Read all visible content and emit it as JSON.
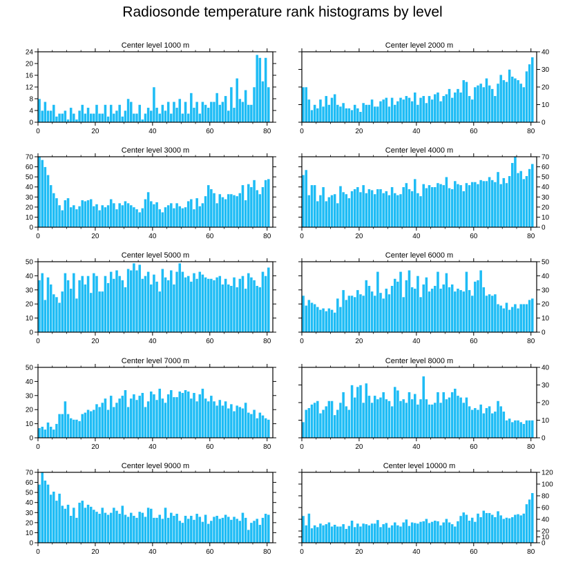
{
  "figure_title": "Radiosonde temperature rank histograms by level",
  "bar_color": "#1ebcf5",
  "bar_edge_color": "#ffffff",
  "axis_color": "#000000",
  "chart_data": [
    {
      "type": "bar",
      "title": "Center level 1000 m",
      "xlim": [
        0,
        82
      ],
      "ylim": [
        0,
        24
      ],
      "xticks": [
        0,
        20,
        40,
        60,
        80
      ],
      "yticks": [
        0,
        4,
        8,
        12,
        16,
        20,
        24
      ],
      "y_axis_side": "left",
      "values": [
        8,
        4,
        7,
        4,
        4,
        6,
        2,
        3,
        3,
        4,
        1,
        5,
        3,
        1,
        4,
        6,
        3,
        5,
        3,
        3,
        6,
        3,
        3,
        6,
        2,
        6,
        3,
        4,
        6,
        2,
        4,
        8,
        7,
        3,
        3,
        6,
        1,
        3,
        5,
        4,
        12,
        5,
        3,
        6,
        4,
        7,
        3,
        7,
        5,
        8,
        3,
        7,
        3,
        10,
        5,
        7,
        3,
        7,
        6,
        5,
        7,
        7,
        10,
        6,
        7,
        9,
        4,
        12,
        5,
        15,
        8,
        7,
        11,
        6,
        6,
        12,
        23,
        22,
        14,
        22,
        12
      ]
    },
    {
      "type": "bar",
      "title": "Center level 2000 m",
      "xlim": [
        0,
        82
      ],
      "ylim": [
        0,
        40
      ],
      "xticks": [
        0,
        20,
        40,
        60,
        80
      ],
      "yticks": [
        0,
        10,
        20,
        30,
        40
      ],
      "y_axis_side": "right",
      "values": [
        20,
        20,
        13,
        7,
        10,
        8,
        13,
        9,
        15,
        10,
        14,
        16,
        10,
        9,
        11,
        8,
        8,
        7,
        10,
        8,
        6,
        11,
        10,
        10,
        13,
        9,
        9,
        12,
        13,
        14,
        9,
        14,
        10,
        12,
        14,
        13,
        15,
        14,
        12,
        17,
        10,
        14,
        15,
        11,
        15,
        13,
        16,
        17,
        12,
        15,
        16,
        19,
        14,
        17,
        19,
        17,
        24,
        23,
        15,
        13,
        20,
        21,
        22,
        20,
        25,
        21,
        19,
        15,
        22,
        27,
        24,
        23,
        30,
        26,
        25,
        24,
        22,
        20,
        29,
        33,
        37
      ]
    },
    {
      "type": "bar",
      "title": "Center level 3000 m",
      "xlim": [
        0,
        82
      ],
      "ylim": [
        0,
        70
      ],
      "xticks": [
        0,
        20,
        40,
        60,
        80
      ],
      "yticks": [
        0,
        10,
        20,
        30,
        40,
        50,
        60,
        70
      ],
      "y_axis_side": "left",
      "values": [
        70,
        67,
        60,
        52,
        42,
        34,
        29,
        22,
        17,
        27,
        29,
        20,
        22,
        18,
        21,
        27,
        26,
        27,
        28,
        21,
        23,
        17,
        22,
        20,
        22,
        28,
        24,
        18,
        24,
        22,
        26,
        24,
        22,
        20,
        18,
        15,
        19,
        28,
        35,
        26,
        23,
        25,
        18,
        15,
        20,
        22,
        24,
        19,
        24,
        21,
        19,
        20,
        26,
        28,
        18,
        29,
        21,
        24,
        31,
        42,
        38,
        34,
        24,
        33,
        30,
        28,
        33,
        33,
        32,
        31,
        34,
        42,
        27,
        43,
        40,
        47,
        37,
        33,
        40,
        47,
        48
      ]
    },
    {
      "type": "bar",
      "title": "Center level 4000 m",
      "xlim": [
        0,
        82
      ],
      "ylim": [
        0,
        70
      ],
      "xticks": [
        0,
        20,
        40,
        60,
        80
      ],
      "yticks": [
        0,
        10,
        20,
        30,
        40,
        50,
        60,
        70
      ],
      "y_axis_side": "right",
      "values": [
        52,
        57,
        32,
        42,
        42,
        26,
        32,
        40,
        26,
        30,
        32,
        33,
        24,
        41,
        35,
        33,
        29,
        36,
        38,
        40,
        35,
        42,
        34,
        38,
        37,
        33,
        38,
        38,
        34,
        36,
        32,
        40,
        34,
        32,
        33,
        40,
        44,
        38,
        36,
        48,
        34,
        31,
        43,
        39,
        42,
        40,
        40,
        44,
        43,
        42,
        50,
        39,
        38,
        46,
        43,
        42,
        36,
        44,
        42,
        45,
        45,
        43,
        47,
        46,
        46,
        50,
        47,
        45,
        55,
        43,
        49,
        44,
        51,
        64,
        70,
        54,
        56,
        48,
        51,
        58,
        63
      ]
    },
    {
      "type": "bar",
      "title": "Center level 5000 m",
      "xlim": [
        0,
        82
      ],
      "ylim": [
        0,
        50
      ],
      "xticks": [
        0,
        20,
        40,
        60,
        80
      ],
      "yticks": [
        0,
        10,
        20,
        30,
        40,
        50
      ],
      "y_axis_side": "left",
      "values": [
        37,
        42,
        23,
        39,
        34,
        27,
        25,
        21,
        29,
        42,
        37,
        31,
        42,
        24,
        37,
        40,
        34,
        40,
        28,
        42,
        40,
        29,
        29,
        40,
        35,
        43,
        38,
        44,
        40,
        37,
        32,
        45,
        44,
        49,
        44,
        48,
        38,
        40,
        43,
        34,
        41,
        36,
        29,
        45,
        39,
        37,
        44,
        34,
        43,
        49,
        43,
        39,
        40,
        36,
        42,
        38,
        43,
        41,
        39,
        38,
        38,
        37,
        39,
        40,
        34,
        38,
        34,
        33,
        39,
        32,
        38,
        40,
        31,
        42,
        39,
        37,
        33,
        32,
        43,
        40,
        46
      ]
    },
    {
      "type": "bar",
      "title": "Center level 6000 m",
      "xlim": [
        0,
        82
      ],
      "ylim": [
        0,
        50
      ],
      "xticks": [
        0,
        20,
        40,
        60,
        80
      ],
      "yticks": [
        0,
        10,
        20,
        30,
        40,
        50
      ],
      "y_axis_side": "right",
      "values": [
        26,
        19,
        23,
        21,
        20,
        18,
        16,
        17,
        15,
        17,
        16,
        14,
        24,
        18,
        30,
        23,
        26,
        26,
        25,
        30,
        27,
        26,
        37,
        33,
        29,
        26,
        43,
        28,
        24,
        31,
        27,
        33,
        38,
        36,
        43,
        25,
        37,
        44,
        32,
        31,
        40,
        25,
        34,
        39,
        29,
        31,
        33,
        43,
        31,
        34,
        42,
        32,
        34,
        29,
        31,
        30,
        29,
        43,
        30,
        26,
        36,
        37,
        44,
        32,
        26,
        27,
        26,
        27,
        20,
        19,
        17,
        21,
        16,
        18,
        20,
        17,
        20,
        20,
        20,
        23,
        24
      ]
    },
    {
      "type": "bar",
      "title": "Center level 7000 m",
      "xlim": [
        0,
        82
      ],
      "ylim": [
        0,
        50
      ],
      "xticks": [
        0,
        20,
        40,
        60,
        80
      ],
      "yticks": [
        0,
        10,
        20,
        30,
        40,
        50
      ],
      "y_axis_side": "left",
      "values": [
        7,
        8,
        6,
        11,
        8,
        6,
        10,
        17,
        17,
        26,
        17,
        14,
        13,
        13,
        12,
        17,
        18,
        20,
        19,
        20,
        24,
        22,
        25,
        28,
        20,
        30,
        22,
        25,
        28,
        30,
        34,
        22,
        28,
        31,
        27,
        30,
        32,
        22,
        26,
        33,
        31,
        27,
        35,
        28,
        25,
        31,
        34,
        29,
        29,
        33,
        32,
        34,
        33,
        28,
        32,
        26,
        31,
        35,
        28,
        26,
        30,
        26,
        23,
        27,
        23,
        26,
        21,
        24,
        19,
        23,
        22,
        21,
        25,
        18,
        17,
        20,
        14,
        18,
        16,
        14,
        13
      ]
    },
    {
      "type": "bar",
      "title": "Center level 8000 m",
      "xlim": [
        0,
        82
      ],
      "ylim": [
        0,
        40
      ],
      "xticks": [
        0,
        20,
        40,
        60,
        80
      ],
      "yticks": [
        0,
        10,
        20,
        30,
        40
      ],
      "y_axis_side": "right",
      "values": [
        9,
        16,
        17,
        19,
        20,
        21,
        14,
        16,
        18,
        21,
        21,
        13,
        16,
        20,
        26,
        18,
        16,
        30,
        23,
        29,
        30,
        20,
        31,
        24,
        20,
        24,
        22,
        23,
        26,
        22,
        21,
        18,
        29,
        27,
        21,
        22,
        20,
        26,
        22,
        25,
        19,
        22,
        35,
        22,
        19,
        19,
        20,
        26,
        20,
        26,
        22,
        23,
        26,
        28,
        24,
        23,
        20,
        23,
        18,
        16,
        17,
        16,
        19,
        14,
        17,
        18,
        14,
        15,
        21,
        18,
        15,
        10,
        11,
        9,
        10,
        10,
        9,
        8,
        10,
        10,
        10
      ]
    },
    {
      "type": "bar",
      "title": "Center level 9000 m",
      "xlim": [
        0,
        82
      ],
      "ylim": [
        0,
        70
      ],
      "xticks": [
        0,
        20,
        40,
        60,
        80
      ],
      "yticks": [
        0,
        10,
        20,
        30,
        40,
        50,
        60,
        70
      ],
      "y_axis_side": "left",
      "values": [
        58,
        70,
        62,
        58,
        48,
        51,
        42,
        49,
        37,
        34,
        38,
        27,
        35,
        25,
        40,
        42,
        35,
        38,
        36,
        33,
        31,
        29,
        35,
        30,
        28,
        30,
        35,
        32,
        29,
        37,
        28,
        26,
        30,
        27,
        25,
        31,
        30,
        26,
        35,
        34,
        25,
        25,
        28,
        24,
        35,
        25,
        30,
        27,
        29,
        22,
        20,
        27,
        24,
        27,
        23,
        29,
        26,
        21,
        28,
        19,
        22,
        26,
        27,
        24,
        25,
        28,
        26,
        23,
        26,
        24,
        22,
        30,
        25,
        13,
        20,
        22,
        24,
        18,
        25,
        29,
        28
      ]
    },
    {
      "type": "bar",
      "title": "Center level 10000 m",
      "xlim": [
        0,
        82
      ],
      "ylim": [
        0,
        120
      ],
      "xticks": [
        0,
        20,
        40,
        60,
        80
      ],
      "yticks": [
        0,
        10,
        20,
        40,
        60,
        80,
        100,
        120
      ],
      "y_axis_side": "right",
      "values": [
        46,
        30,
        50,
        25,
        30,
        27,
        33,
        30,
        32,
        35,
        28,
        31,
        28,
        28,
        32,
        24,
        29,
        38,
        27,
        33,
        28,
        33,
        32,
        30,
        33,
        33,
        39,
        27,
        32,
        34,
        26,
        30,
        35,
        30,
        28,
        35,
        40,
        29,
        35,
        34,
        33,
        36,
        37,
        41,
        34,
        36,
        38,
        37,
        30,
        35,
        41,
        35,
        32,
        28,
        37,
        46,
        52,
        48,
        38,
        43,
        36,
        50,
        44,
        55,
        51,
        51,
        48,
        44,
        54,
        47,
        41,
        43,
        42,
        44,
        48,
        49,
        47,
        50,
        66,
        74,
        85
      ]
    }
  ]
}
